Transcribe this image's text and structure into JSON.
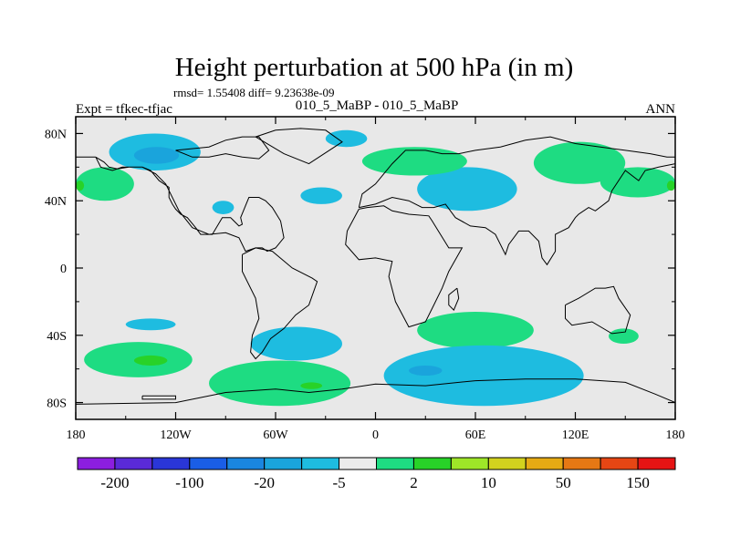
{
  "chart_data": {
    "type": "heatmap",
    "title": "Height perturbation at 500 hPa (in m)",
    "stats": "rmsd= 1.55408 diff= 9.23638e-09",
    "subtitle_left": "Expt = tfkec-tfjac",
    "subtitle_center": "010_5_MaBP - 010_5_MaBP",
    "subtitle_right": "ANN",
    "xlim": [
      -180,
      180
    ],
    "ylim": [
      -90,
      90
    ],
    "x_ticks": [
      {
        "value": -180,
        "label": "180"
      },
      {
        "value": -120,
        "label": "120W"
      },
      {
        "value": -60,
        "label": "60W"
      },
      {
        "value": 0,
        "label": "0"
      },
      {
        "value": 60,
        "label": "60E"
      },
      {
        "value": 120,
        "label": "120E"
      },
      {
        "value": 180,
        "label": "180"
      }
    ],
    "y_ticks": [
      {
        "value": 80,
        "label": "80N"
      },
      {
        "value": 40,
        "label": "40N"
      },
      {
        "value": 0,
        "label": "0"
      },
      {
        "value": -40,
        "label": "40S"
      },
      {
        "value": -80,
        "label": "80S"
      }
    ],
    "colorbar": {
      "colors": [
        "#8c1ee0",
        "#5a2ad8",
        "#2a36d8",
        "#1a5ee6",
        "#1a86e0",
        "#1aa4dc",
        "#1ebce0",
        "#ebebeb",
        "#1edc82",
        "#28d228",
        "#9ee628",
        "#d2d21e",
        "#e6aa14",
        "#e67814",
        "#e64614",
        "#e61414"
      ],
      "labels": [
        {
          "boundary": 1,
          "text": "-200"
        },
        {
          "boundary": 3,
          "text": "-100"
        },
        {
          "boundary": 5,
          "text": "-20"
        },
        {
          "boundary": 7,
          "text": "-5"
        },
        {
          "boundary": 9,
          "text": "2"
        },
        {
          "boundary": 11,
          "text": "10"
        },
        {
          "boundary": 13,
          "text": "50"
        },
        {
          "boundary": 15,
          "text": "150"
        }
      ]
    },
    "field": {
      "background": "#e8e8e8",
      "regions": [
        {
          "color": "#1ebce0",
          "lon": [
            -160,
            -105
          ],
          "lat": [
            58,
            80
          ]
        },
        {
          "color": "#1aa4dc",
          "lon": [
            -145,
            -118
          ],
          "lat": [
            62,
            72
          ]
        },
        {
          "color": "#1ebce0",
          "lon": [
            -30,
            -5
          ],
          "lat": [
            72,
            82
          ]
        },
        {
          "color": "#1ebce0",
          "lon": [
            -45,
            -20
          ],
          "lat": [
            38,
            48
          ]
        },
        {
          "color": "#1ebce0",
          "lon": [
            -98,
            -85
          ],
          "lat": [
            32,
            40
          ]
        },
        {
          "color": "#1ebce0",
          "lon": [
            25,
            85
          ],
          "lat": [
            34,
            60
          ]
        },
        {
          "color": "#1edc82",
          "lon": [
            -8,
            55
          ],
          "lat": [
            55,
            72
          ]
        },
        {
          "color": "#1edc82",
          "lon": [
            95,
            150
          ],
          "lat": [
            50,
            75
          ]
        },
        {
          "color": "#1edc82",
          "lon": [
            135,
            180
          ],
          "lat": [
            42,
            60
          ]
        },
        {
          "color": "#1edc82",
          "lon": [
            -180,
            -145
          ],
          "lat": [
            40,
            60
          ]
        },
        {
          "color": "#28d228",
          "lon": [
            -180,
            -175
          ],
          "lat": [
            46,
            52
          ]
        },
        {
          "color": "#28d228",
          "lon": [
            175,
            180
          ],
          "lat": [
            46,
            52
          ]
        },
        {
          "color": "#1ebce0",
          "lon": [
            -150,
            -120
          ],
          "lat": [
            -37,
            -30
          ]
        },
        {
          "color": "#1ebce0",
          "lon": [
            -75,
            -20
          ],
          "lat": [
            -55,
            -35
          ]
        },
        {
          "color": "#1edc82",
          "lon": [
            -175,
            -110
          ],
          "lat": [
            -65,
            -44
          ]
        },
        {
          "color": "#28d228",
          "lon": [
            -145,
            -125
          ],
          "lat": [
            -58,
            -52
          ]
        },
        {
          "color": "#1edc82",
          "lon": [
            -100,
            -15
          ],
          "lat": [
            -82,
            -55
          ]
        },
        {
          "color": "#28d228",
          "lon": [
            -45,
            -32
          ],
          "lat": [
            -72,
            -68
          ]
        },
        {
          "color": "#1edc82",
          "lon": [
            25,
            95
          ],
          "lat": [
            -48,
            -26
          ]
        },
        {
          "color": "#1ebce0",
          "lon": [
            5,
            125
          ],
          "lat": [
            -82,
            -46
          ]
        },
        {
          "color": "#1aa4dc",
          "lon": [
            20,
            40
          ],
          "lat": [
            -64,
            -58
          ]
        },
        {
          "color": "#1edc82",
          "lon": [
            140,
            158
          ],
          "lat": [
            -45,
            -36
          ]
        }
      ]
    },
    "coastlines": [
      {
        "lon": [
          -168,
          -165,
          -158,
          -152,
          -146,
          -140,
          -132,
          -126,
          -118,
          -110,
          -100,
          -90,
          -82,
          -78,
          -72,
          -68,
          -65,
          -60,
          -55,
          -57,
          -62,
          -66,
          -70,
          -76,
          -81,
          -80,
          -82,
          -87,
          -92,
          -98,
          -105,
          -108,
          -113,
          -117,
          -120,
          -122,
          -124,
          -124,
          -130,
          -135,
          -140,
          -148,
          -155,
          -160,
          -163,
          -168
        ],
        "lat": [
          66,
          60,
          58,
          60,
          60,
          60,
          56,
          50,
          34,
          24,
          20,
          21,
          18,
          10,
          12,
          12,
          10,
          12,
          18,
          28,
          36,
          40,
          42,
          42,
          30,
          26,
          25,
          30,
          30,
          20,
          20,
          24,
          30,
          32,
          35,
          38,
          42,
          48,
          52,
          58,
          60,
          60,
          59,
          60,
          63,
          66
        ]
      },
      {
        "lon": [
          -120,
          -100,
          -90,
          -80,
          -70,
          -64,
          -70,
          -80,
          -90,
          -100,
          -110,
          -120
        ],
        "lat": [
          70,
          72,
          76,
          78,
          78,
          70,
          65,
          66,
          68,
          66,
          66,
          70
        ]
      },
      {
        "lon": [
          -72,
          -60,
          -45,
          -30,
          -20,
          -40,
          -55,
          -72
        ],
        "lat": [
          78,
          82,
          83,
          82,
          75,
          62,
          68,
          78
        ]
      },
      {
        "lon": [
          -80,
          -72,
          -62,
          -50,
          -38,
          -35,
          -40,
          -48,
          -55,
          -63,
          -68,
          -72,
          -75,
          -74,
          -70,
          -72,
          -80,
          -80
        ],
        "lat": [
          8,
          12,
          10,
          0,
          -6,
          -8,
          -22,
          -28,
          -36,
          -42,
          -50,
          -54,
          -50,
          -40,
          -30,
          -18,
          -2,
          8
        ]
      },
      {
        "lon": [
          -10,
          -5,
          5,
          10,
          20,
          32,
          34,
          44,
          52,
          44,
          40,
          35,
          30,
          20,
          12,
          8,
          10,
          0,
          -10,
          -18,
          -17,
          -10
        ],
        "lat": [
          35,
          36,
          37,
          34,
          32,
          31,
          28,
          12,
          12,
          -2,
          -12,
          -22,
          -32,
          -35,
          -20,
          -5,
          4,
          6,
          5,
          14,
          22,
          35
        ]
      },
      {
        "lon": [
          -10,
          -8,
          0,
          5,
          10,
          18,
          30,
          40,
          50,
          60,
          75,
          90,
          105,
          120,
          135,
          150,
          165,
          175,
          180
        ],
        "lat": [
          36,
          44,
          50,
          56,
          62,
          70,
          70,
          68,
          68,
          70,
          72,
          76,
          78,
          74,
          72,
          70,
          68,
          66,
          66
        ]
      },
      {
        "lon": [
          -10,
          0,
          10,
          20,
          28,
          35,
          42,
          48,
          57,
          66,
          72,
          78,
          80,
          86,
          92,
          98,
          100,
          103,
          108,
          108,
          116,
          120,
          122,
          128,
          132,
          140,
          142,
          150,
          158,
          162,
          170,
          180
        ],
        "lat": [
          36,
          38,
          42,
          40,
          36,
          36,
          38,
          30,
          25,
          24,
          20,
          8,
          14,
          22,
          22,
          16,
          6,
          2,
          10,
          20,
          24,
          30,
          32,
          36,
          34,
          40,
          46,
          58,
          52,
          58,
          60,
          62
        ]
      },
      {
        "lon": [
          -180,
          -172,
          -168
        ],
        "lat": [
          66,
          66,
          66
        ]
      },
      {
        "lon": [
          114,
          122,
          132,
          138,
          143,
          146,
          153,
          150,
          142,
          130,
          118,
          114,
          114
        ],
        "lat": [
          -22,
          -18,
          -12,
          -12,
          -11,
          -18,
          -28,
          -38,
          -39,
          -32,
          -34,
          -30,
          -22
        ]
      },
      {
        "lon": [
          49,
          50,
          47,
          44,
          44,
          49
        ],
        "lat": [
          -12,
          -18,
          -25,
          -22,
          -16,
          -12
        ]
      },
      {
        "lon": [
          -180,
          -120,
          -90,
          -60,
          -40,
          -20,
          0,
          30,
          60,
          90,
          120,
          150,
          168,
          180
        ],
        "lat": [
          -81,
          -80,
          -74,
          -72,
          -74,
          -72,
          -69,
          -70,
          -67,
          -66,
          -66,
          -68,
          -75,
          -80
        ]
      },
      {
        "lon": [
          -140,
          -120,
          -120,
          -140,
          -140
        ],
        "lat": [
          -76,
          -76,
          -78,
          -78,
          -76
        ]
      }
    ]
  }
}
